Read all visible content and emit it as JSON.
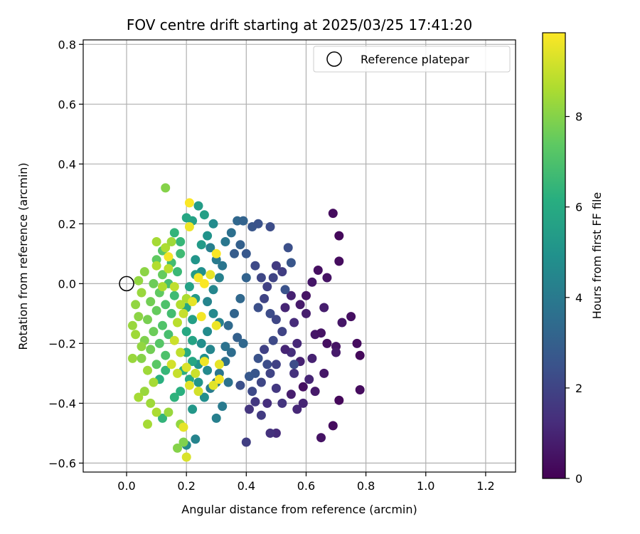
{
  "chart_data": {
    "type": "scatter",
    "title": "FOV centre drift starting at 2025/03/25 17:41:20",
    "xlabel": "Angular distance from reference (arcmin)",
    "ylabel": "Rotation from reference (arcmin)",
    "xlim": [
      -0.145,
      1.3
    ],
    "ylim": [
      -0.63,
      0.815
    ],
    "xticks": [
      0.0,
      0.2,
      0.4,
      0.6,
      0.8,
      1.0,
      1.2
    ],
    "xtick_labels": [
      "0.0",
      "0.2",
      "0.4",
      "0.6",
      "0.8",
      "1.0",
      "1.2"
    ],
    "yticks": [
      -0.6,
      -0.4,
      -0.2,
      0.0,
      0.2,
      0.4,
      0.6,
      0.8
    ],
    "ytick_labels": [
      "−0.6",
      "−0.4",
      "−0.2",
      "0.0",
      "0.2",
      "0.4",
      "0.6",
      "0.8"
    ],
    "grid": true,
    "legend": {
      "placement": "top-right",
      "entries": [
        "Reference platepar"
      ]
    },
    "reference_point": {
      "x": 0.0,
      "y": 0.0
    },
    "colorbar": {
      "label": "Hours from first FF file",
      "range": [
        0,
        9.85
      ],
      "ticks": [
        0,
        2,
        4,
        6,
        8
      ],
      "tick_labels": [
        "0",
        "2",
        "4",
        "6",
        "8"
      ],
      "colormap": "viridis"
    },
    "points": [
      [
        0.69,
        0.235,
        0.3
      ],
      [
        0.71,
        0.16,
        0.2
      ],
      [
        0.71,
        0.075,
        0.3
      ],
      [
        0.75,
        -0.11,
        0.4
      ],
      [
        0.77,
        -0.2,
        0.3
      ],
      [
        0.78,
        -0.24,
        0.2
      ],
      [
        0.78,
        -0.355,
        0.3
      ],
      [
        0.71,
        -0.39,
        0.2
      ],
      [
        0.69,
        -0.475,
        0.3
      ],
      [
        0.65,
        -0.515,
        0.5
      ],
      [
        0.67,
        0.02,
        0.5
      ],
      [
        0.64,
        0.045,
        0.4
      ],
      [
        0.62,
        0.005,
        0.6
      ],
      [
        0.6,
        -0.04,
        0.5
      ],
      [
        0.58,
        -0.07,
        0.7
      ],
      [
        0.6,
        -0.1,
        0.8
      ],
      [
        0.63,
        -0.17,
        0.6
      ],
      [
        0.65,
        -0.165,
        0.5
      ],
      [
        0.67,
        -0.2,
        0.4
      ],
      [
        0.7,
        -0.21,
        0.5
      ],
      [
        0.72,
        -0.13,
        0.6
      ],
      [
        0.7,
        -0.23,
        0.7
      ],
      [
        0.66,
        -0.08,
        0.8
      ],
      [
        0.62,
        -0.25,
        0.9
      ],
      [
        0.59,
        -0.345,
        0.4
      ],
      [
        0.66,
        -0.3,
        0.6
      ],
      [
        0.63,
        -0.36,
        0.7
      ],
      [
        0.55,
        -0.04,
        0.9
      ],
      [
        0.53,
        -0.08,
        1.0
      ],
      [
        0.56,
        -0.13,
        1.2
      ],
      [
        0.57,
        -0.2,
        1.1
      ],
      [
        0.55,
        -0.23,
        1.3
      ],
      [
        0.53,
        -0.22,
        1.0
      ],
      [
        0.58,
        -0.26,
        0.9
      ],
      [
        0.56,
        -0.3,
        1.4
      ],
      [
        0.61,
        -0.32,
        1.0
      ],
      [
        0.55,
        -0.37,
        0.8
      ],
      [
        0.59,
        -0.4,
        1.0
      ],
      [
        0.57,
        -0.42,
        1.1
      ],
      [
        0.52,
        -0.4,
        1.5
      ],
      [
        0.5,
        -0.35,
        1.6
      ],
      [
        0.5,
        -0.5,
        1.2
      ],
      [
        0.48,
        -0.5,
        1.4
      ],
      [
        0.45,
        -0.44,
        1.7
      ],
      [
        0.43,
        -0.395,
        1.6
      ],
      [
        0.4,
        -0.53,
        1.8
      ],
      [
        0.41,
        -0.42,
        1.5
      ],
      [
        0.47,
        -0.4,
        1.3
      ],
      [
        0.5,
        0.06,
        1.7
      ],
      [
        0.52,
        0.04,
        1.8
      ],
      [
        0.49,
        0.02,
        2.0
      ],
      [
        0.47,
        -0.01,
        1.9
      ],
      [
        0.45,
        0.02,
        2.1
      ],
      [
        0.43,
        0.06,
        2.2
      ],
      [
        0.46,
        -0.05,
        2.0
      ],
      [
        0.44,
        -0.08,
        2.4
      ],
      [
        0.48,
        -0.1,
        2.3
      ],
      [
        0.5,
        -0.12,
        2.1
      ],
      [
        0.52,
        -0.16,
        2.0
      ],
      [
        0.49,
        -0.19,
        2.2
      ],
      [
        0.46,
        -0.22,
        1.9
      ],
      [
        0.44,
        -0.25,
        2.5
      ],
      [
        0.47,
        -0.27,
        2.3
      ],
      [
        0.43,
        -0.3,
        2.6
      ],
      [
        0.41,
        -0.31,
        2.7
      ],
      [
        0.38,
        -0.34,
        2.4
      ],
      [
        0.42,
        -0.36,
        2.2
      ],
      [
        0.45,
        -0.33,
        2.1
      ],
      [
        0.48,
        -0.3,
        2.0
      ],
      [
        0.5,
        -0.27,
        1.9
      ],
      [
        0.54,
        0.12,
        2.4
      ],
      [
        0.55,
        0.07,
        2.6
      ],
      [
        0.53,
        -0.02,
        2.5
      ],
      [
        0.56,
        -0.27,
        2.3
      ],
      [
        0.36,
        0.1,
        2.9
      ],
      [
        0.4,
        0.1,
        2.7
      ],
      [
        0.38,
        0.13,
        3.0
      ],
      [
        0.42,
        0.19,
        2.6
      ],
      [
        0.44,
        0.2,
        2.5
      ],
      [
        0.48,
        0.19,
        2.3
      ],
      [
        0.4,
        0.02,
        3.1
      ],
      [
        0.38,
        -0.05,
        3.3
      ],
      [
        0.36,
        -0.1,
        3.2
      ],
      [
        0.34,
        -0.14,
        3.4
      ],
      [
        0.37,
        -0.18,
        3.0
      ],
      [
        0.39,
        -0.2,
        3.3
      ],
      [
        0.35,
        -0.23,
        3.5
      ],
      [
        0.33,
        -0.26,
        3.6
      ],
      [
        0.31,
        -0.3,
        3.8
      ],
      [
        0.34,
        -0.33,
        3.7
      ],
      [
        0.3,
        -0.33,
        3.9
      ],
      [
        0.28,
        -0.35,
        4.1
      ],
      [
        0.32,
        -0.41,
        4.0
      ],
      [
        0.3,
        -0.45,
        4.2
      ],
      [
        0.33,
        -0.21,
        3.7
      ],
      [
        0.32,
        0.06,
        3.8
      ],
      [
        0.3,
        0.08,
        4.0
      ],
      [
        0.28,
        0.12,
        4.2
      ],
      [
        0.33,
        0.14,
        3.9
      ],
      [
        0.35,
        0.17,
        3.6
      ],
      [
        0.37,
        0.21,
        3.3
      ],
      [
        0.39,
        0.21,
        3.1
      ],
      [
        0.31,
        0.02,
        4.3
      ],
      [
        0.29,
        -0.02,
        4.5
      ],
      [
        0.27,
        -0.06,
        4.4
      ],
      [
        0.29,
        -0.1,
        4.6
      ],
      [
        0.31,
        -0.13,
        4.3
      ],
      [
        0.27,
        -0.16,
        4.7
      ],
      [
        0.25,
        -0.2,
        4.8
      ],
      [
        0.28,
        -0.22,
        4.5
      ],
      [
        0.26,
        -0.25,
        4.9
      ],
      [
        0.24,
        -0.27,
        5.0
      ],
      [
        0.27,
        -0.29,
        4.6
      ],
      [
        0.24,
        -0.33,
        5.1
      ],
      [
        0.26,
        -0.38,
        4.8
      ],
      [
        0.22,
        -0.42,
        5.2
      ],
      [
        0.23,
        -0.52,
        4.4
      ],
      [
        0.2,
        -0.54,
        4.6
      ],
      [
        0.25,
        0.04,
        4.9
      ],
      [
        0.23,
        0.08,
        5.1
      ],
      [
        0.25,
        0.13,
        5.3
      ],
      [
        0.27,
        0.16,
        5.0
      ],
      [
        0.29,
        0.2,
        4.7
      ],
      [
        0.26,
        0.23,
        5.5
      ],
      [
        0.24,
        0.26,
        5.4
      ],
      [
        0.22,
        0.21,
        5.6
      ],
      [
        0.2,
        0.22,
        5.8
      ],
      [
        0.23,
        0.03,
        5.4
      ],
      [
        0.21,
        -0.01,
        5.6
      ],
      [
        0.23,
        -0.05,
        5.3
      ],
      [
        0.2,
        -0.08,
        5.8
      ],
      [
        0.22,
        -0.12,
        5.5
      ],
      [
        0.2,
        -0.16,
        5.9
      ],
      [
        0.22,
        -0.19,
        5.7
      ],
      [
        0.2,
        -0.23,
        6.0
      ],
      [
        0.22,
        -0.26,
        5.8
      ],
      [
        0.19,
        -0.29,
        6.1
      ],
      [
        0.21,
        -0.32,
        5.9
      ],
      [
        0.18,
        -0.36,
        6.2
      ],
      [
        0.16,
        -0.38,
        6.3
      ],
      [
        0.12,
        -0.45,
        6.4
      ],
      [
        0.11,
        -0.32,
        6.2
      ],
      [
        0.13,
        -0.29,
        6.5
      ],
      [
        0.18,
        0.14,
        6.5
      ],
      [
        0.16,
        0.17,
        6.4
      ],
      [
        0.18,
        0.1,
        6.7
      ],
      [
        0.15,
        0.07,
        6.8
      ],
      [
        0.17,
        0.04,
        6.6
      ],
      [
        0.14,
        0.0,
        6.9
      ],
      [
        0.16,
        -0.04,
        6.7
      ],
      [
        0.13,
        -0.07,
        7.0
      ],
      [
        0.15,
        -0.1,
        6.8
      ],
      [
        0.12,
        -0.14,
        7.1
      ],
      [
        0.14,
        -0.17,
        6.9
      ],
      [
        0.11,
        -0.2,
        7.2
      ],
      [
        0.13,
        -0.24,
        7.0
      ],
      [
        0.1,
        -0.27,
        7.3
      ],
      [
        0.12,
        0.11,
        7.2
      ],
      [
        0.1,
        0.08,
        7.4
      ],
      [
        0.12,
        0.03,
        7.5
      ],
      [
        0.09,
        0.0,
        7.6
      ],
      [
        0.11,
        -0.03,
        7.4
      ],
      [
        0.08,
        -0.06,
        7.7
      ],
      [
        0.1,
        -0.09,
        7.5
      ],
      [
        0.07,
        -0.12,
        7.8
      ],
      [
        0.09,
        -0.16,
        7.6
      ],
      [
        0.06,
        -0.19,
        7.9
      ],
      [
        0.08,
        -0.22,
        7.7
      ],
      [
        0.05,
        -0.25,
        8.0
      ],
      [
        0.13,
        0.32,
        8.0
      ],
      [
        0.06,
        0.04,
        8.1
      ],
      [
        0.04,
        0.01,
        8.2
      ],
      [
        0.05,
        -0.03,
        8.3
      ],
      [
        0.03,
        -0.07,
        8.2
      ],
      [
        0.04,
        -0.11,
        8.1
      ],
      [
        0.02,
        -0.14,
        8.3
      ],
      [
        0.03,
        -0.17,
        8.4
      ],
      [
        0.05,
        -0.21,
        8.2
      ],
      [
        0.02,
        -0.25,
        8.3
      ],
      [
        0.07,
        -0.29,
        8.4
      ],
      [
        0.09,
        -0.33,
        8.5
      ],
      [
        0.06,
        -0.36,
        8.3
      ],
      [
        0.04,
        -0.38,
        8.5
      ],
      [
        0.08,
        -0.4,
        8.4
      ],
      [
        0.1,
        -0.43,
        8.6
      ],
      [
        0.07,
        -0.47,
        8.5
      ],
      [
        0.14,
        -0.43,
        8.3
      ],
      [
        0.17,
        -0.55,
        8.0
      ],
      [
        0.19,
        -0.53,
        7.9
      ],
      [
        0.18,
        -0.47,
        8.2
      ],
      [
        0.1,
        0.14,
        8.5
      ],
      [
        0.13,
        0.12,
        8.6
      ],
      [
        0.15,
        0.14,
        8.4
      ],
      [
        0.1,
        0.06,
        8.7
      ],
      [
        0.14,
        0.05,
        8.8
      ],
      [
        0.12,
        -0.01,
        8.6
      ],
      [
        0.16,
        -0.01,
        8.9
      ],
      [
        0.18,
        -0.07,
        8.7
      ],
      [
        0.2,
        -0.05,
        8.6
      ],
      [
        0.17,
        -0.13,
        8.8
      ],
      [
        0.19,
        -0.1,
        9.0
      ],
      [
        0.16,
        -0.19,
        9.1
      ],
      [
        0.18,
        -0.23,
        8.9
      ],
      [
        0.15,
        -0.27,
        9.2
      ],
      [
        0.17,
        -0.3,
        9.0
      ],
      [
        0.2,
        -0.28,
        9.3
      ],
      [
        0.23,
        -0.3,
        9.1
      ],
      [
        0.21,
        -0.34,
        9.4
      ],
      [
        0.24,
        -0.36,
        9.2
      ],
      [
        0.19,
        -0.48,
        9.5
      ],
      [
        0.2,
        -0.58,
        9.3
      ],
      [
        0.26,
        -0.26,
        9.6
      ],
      [
        0.29,
        -0.34,
        9.4
      ],
      [
        0.31,
        -0.27,
        9.5
      ],
      [
        0.31,
        -0.32,
        9.7
      ],
      [
        0.3,
        -0.14,
        9.6
      ],
      [
        0.28,
        0.03,
        9.5
      ],
      [
        0.3,
        0.1,
        9.8
      ],
      [
        0.24,
        0.02,
        9.7
      ],
      [
        0.21,
        0.19,
        9.6
      ],
      [
        0.21,
        0.27,
        9.8
      ],
      [
        0.14,
        0.09,
        9.7
      ],
      [
        0.22,
        -0.06,
        9.5
      ],
      [
        0.25,
        -0.11,
        9.7
      ],
      [
        0.26,
        0.0,
        9.8
      ]
    ]
  }
}
